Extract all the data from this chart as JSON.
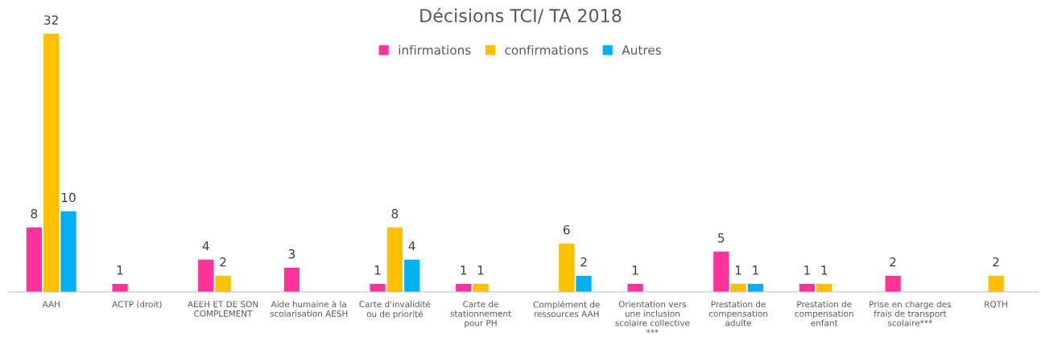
{
  "chart_data": {
    "type": "bar",
    "title": "Décisions TCI/ TA 2018",
    "categories": [
      "AAH",
      "ACTP (droit)",
      "AEEH ET DE SON\nCOMPLEMENT",
      "Aide humaine à la\nscolarisation AESH",
      "Carte d'invalidité\nou de priorité",
      "Carte de\nstationnement\npour PH",
      "Complément de\nressources AAH",
      "Orientation vers\nune inclusion\nscolaire collective\n***",
      "Prestation de\ncompensation\nadulte",
      "Prestation de\ncompensation\nenfant",
      "Prise en charge des\nfrais de transport\nscolaire***",
      "RQTH"
    ],
    "series": [
      {
        "name": "infirmations",
        "color": "#ff3399",
        "values": [
          8,
          1,
          4,
          3,
          1,
          1,
          null,
          1,
          5,
          1,
          2,
          null
        ]
      },
      {
        "name": "confirmations",
        "color": "#ffc000",
        "values": [
          32,
          null,
          2,
          null,
          8,
          1,
          6,
          null,
          1,
          1,
          null,
          2
        ]
      },
      {
        "name": "Autres",
        "color": "#00b0f0",
        "values": [
          10,
          null,
          null,
          null,
          4,
          null,
          2,
          null,
          1,
          null,
          null,
          null
        ]
      }
    ],
    "data_labels": true,
    "legend": "top",
    "grid": false
  }
}
